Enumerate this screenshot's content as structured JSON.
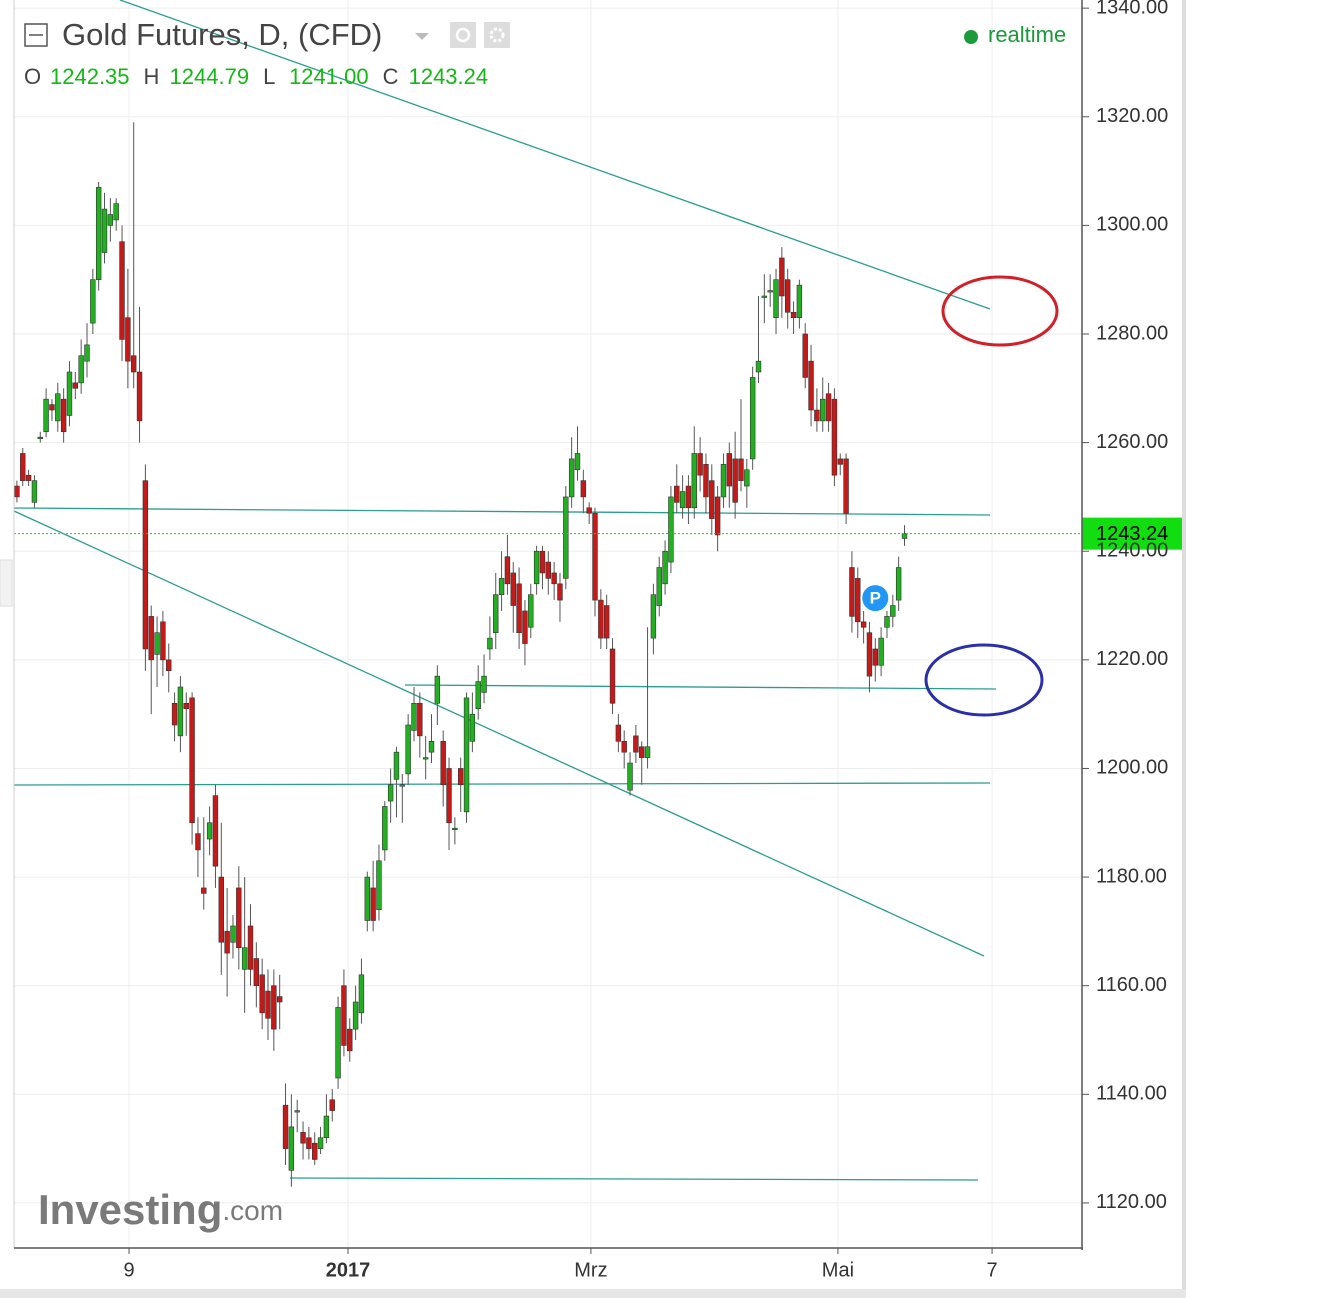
{
  "chart_data": {
    "type": "candlestick",
    "title": "Gold Futures, D, (CFD)",
    "status": "realtime",
    "brand": "Investing",
    "brand_suffix": ".com",
    "marker": "P",
    "ohlc_labels": {
      "names": [
        "O",
        "H",
        "L",
        "C"
      ],
      "value_labels": [
        "1242.35",
        "1244.79",
        "1241.00",
        "1243.24"
      ]
    },
    "up_color": "#22b022",
    "down_color": "#c41a1a",
    "grid": true,
    "xlim": [
      -0.5,
      182.4
    ],
    "xticks": [
      {
        "value": 19.2,
        "label": "9"
      },
      {
        "value": 56.7,
        "label": "2017"
      },
      {
        "value": 98.3,
        "label": "Mrz"
      },
      {
        "value": 140.6,
        "label": "Mai"
      },
      {
        "value": 167,
        "label": "7"
      }
    ],
    "ylim": [
      1111.7,
      1341.5
    ],
    "yticks": [
      {
        "value": 1120,
        "label": "1120.00"
      },
      {
        "value": 1140,
        "label": "1140.00"
      },
      {
        "value": 1160,
        "label": "1160.00"
      },
      {
        "value": 1180,
        "label": "1180.00"
      },
      {
        "value": 1200,
        "label": "1200.00"
      },
      {
        "value": 1220,
        "label": "1220.00"
      },
      {
        "value": 1240,
        "label": "1240.00"
      },
      {
        "value": 1260,
        "label": "1260.00"
      },
      {
        "value": 1280,
        "label": "1280.00"
      },
      {
        "value": 1300,
        "label": "1300.00"
      },
      {
        "value": 1320,
        "label": "1320.00"
      },
      {
        "value": 1340,
        "label": "1340.00"
      }
    ],
    "open": [
      1252,
      1258,
      1254,
      1249,
      1261,
      1262,
      1267,
      1264,
      1268,
      1265,
      1271,
      1271,
      1275,
      1282,
      1290,
      1295,
      1300,
      1301,
      1297,
      1283,
      1276,
      1273,
      1253,
      1228,
      1221,
      1227,
      1220,
      1212,
      1206,
      1212,
      1213,
      1188,
      1178,
      1187,
      1195,
      1180,
      1170,
      1168,
      1178,
      1163,
      1171,
      1165,
      1162,
      1159,
      1160,
      1158,
      1138,
      1126,
      1137,
      1133,
      1132,
      1131,
      1130,
      1132,
      1139,
      1143,
      1160,
      1152,
      1152,
      1155,
      1172,
      1178,
      1174,
      1185,
      1194,
      1198,
      1197,
      1199,
      1207,
      1212,
      1202,
      1203,
      1212,
      1205,
      1200,
      1189,
      1200,
      1192,
      1205,
      1211,
      1214,
      1222,
      1225,
      1232,
      1239,
      1236,
      1234,
      1229,
      1226,
      1234,
      1240,
      1238,
      1236,
      1234,
      1235,
      1250,
      1255,
      1253,
      1248,
      1247,
      1231,
      1230,
      1222,
      1208,
      1205,
      1196,
      1206,
      1204,
      1202,
      1224,
      1230,
      1234,
      1238,
      1252,
      1248,
      1252,
      1248,
      1258,
      1256,
      1253,
      1250,
      1250,
      1258,
      1257,
      1257,
      1252,
      1257,
      1273,
      1287,
      1288,
      1283,
      1294,
      1290,
      1284,
      1283,
      1280,
      1275,
      1266,
      1264,
      1269,
      1268,
      1257,
      1257,
      1237,
      1235,
      1227,
      1225,
      1222,
      1219,
      1226,
      1228,
      1231,
      1242.35
    ],
    "high": [
      1253,
      1259,
      1255,
      1254,
      1262,
      1270,
      1268,
      1271,
      1270,
      1275,
      1273,
      1279,
      1282,
      1292,
      1308,
      1306,
      1305,
      1305,
      1300,
      1292,
      1319,
      1285,
      1256,
      1230,
      1228,
      1229,
      1223,
      1214,
      1217,
      1214,
      1214,
      1191,
      1191,
      1193,
      1197,
      1190,
      1178,
      1173,
      1182,
      1180,
      1175,
      1168,
      1165,
      1163,
      1163,
      1162,
      1142,
      1140,
      1139,
      1135,
      1134,
      1133,
      1134,
      1140,
      1141,
      1158,
      1163,
      1154,
      1160,
      1165,
      1181,
      1183,
      1186,
      1194,
      1200,
      1204,
      1199,
      1210,
      1215,
      1214,
      1206,
      1210,
      1219,
      1207,
      1202,
      1191,
      1202,
      1214,
      1214,
      1219,
      1221,
      1228,
      1236,
      1240,
      1243,
      1238,
      1237,
      1231,
      1234,
      1241,
      1241,
      1240,
      1238,
      1236,
      1252,
      1261,
      1263,
      1255,
      1249,
      1248,
      1233,
      1232,
      1224,
      1210,
      1207,
      1203,
      1208,
      1205,
      1226,
      1234,
      1239,
      1242,
      1252,
      1256,
      1254,
      1254,
      1263,
      1261,
      1258,
      1256,
      1252,
      1258,
      1260,
      1262,
      1268,
      1257,
      1274,
      1287,
      1291,
      1291,
      1292,
      1296,
      1292,
      1286,
      1290,
      1282,
      1278,
      1270,
      1272,
      1271,
      1270,
      1258,
      1258,
      1240,
      1237,
      1229,
      1227,
      1224,
      1226,
      1229,
      1232,
      1239,
      1244.79
    ],
    "low": [
      1249,
      1252,
      1252,
      1248,
      1260,
      1261,
      1264,
      1262,
      1260,
      1263,
      1268,
      1269,
      1272,
      1280,
      1288,
      1293,
      1297,
      1299,
      1275,
      1270,
      1270,
      1260,
      1218,
      1210,
      1215,
      1217,
      1214,
      1205,
      1203,
      1206,
      1186,
      1180,
      1174,
      1184,
      1178,
      1162,
      1158,
      1165,
      1163,
      1155,
      1160,
      1156,
      1152,
      1150,
      1148,
      1152,
      1127,
      1123,
      1133,
      1128,
      1128,
      1127,
      1129,
      1131,
      1135,
      1141,
      1147,
      1146,
      1150,
      1153,
      1170,
      1170,
      1172,
      1183,
      1190,
      1191,
      1190,
      1197,
      1205,
      1202,
      1198,
      1201,
      1208,
      1193,
      1185,
      1186,
      1192,
      1190,
      1203,
      1209,
      1212,
      1220,
      1222,
      1229,
      1232,
      1225,
      1222,
      1219,
      1224,
      1232,
      1233,
      1232,
      1231,
      1227,
      1233,
      1248,
      1253,
      1247,
      1245,
      1228,
      1222,
      1222,
      1210,
      1203,
      1200,
      1195,
      1201,
      1197,
      1200,
      1221,
      1228,
      1232,
      1236,
      1247,
      1246,
      1245,
      1246,
      1251,
      1247,
      1243,
      1240,
      1248,
      1248,
      1246,
      1251,
      1248,
      1255,
      1271,
      1282,
      1285,
      1280,
      1283,
      1281,
      1280,
      1281,
      1270,
      1263,
      1262,
      1262,
      1262,
      1252,
      1254,
      1245,
      1225,
      1224,
      1223,
      1214,
      1216,
      1217,
      1224,
      1226,
      1229,
      1241
    ],
    "close": [
      1250,
      1253,
      1253,
      1253,
      1261,
      1268,
      1266,
      1269,
      1262,
      1273,
      1270,
      1276,
      1278,
      1290,
      1307,
      1303,
      1302,
      1304,
      1279,
      1275,
      1273,
      1264,
      1222,
      1220,
      1225,
      1220,
      1218,
      1208,
      1215,
      1211,
      1190,
      1185,
      1177,
      1190,
      1182,
      1168,
      1166,
      1171,
      1167,
      1167,
      1163,
      1160,
      1155,
      1154,
      1152,
      1157,
      1130,
      1134,
      1137,
      1131,
      1130,
      1128,
      1132,
      1136,
      1137,
      1156,
      1149,
      1148,
      1157,
      1162,
      1180,
      1172,
      1183,
      1193,
      1197,
      1203,
      1197,
      1208,
      1212,
      1206,
      1202,
      1205,
      1217,
      1197,
      1190,
      1189,
      1197,
      1213,
      1210,
      1216,
      1217,
      1224,
      1232,
      1235,
      1234,
      1230,
      1225,
      1223,
      1232,
      1240,
      1236,
      1235,
      1234,
      1231,
      1250,
      1257,
      1258,
      1250,
      1247,
      1231,
      1224,
      1224,
      1212,
      1205,
      1203,
      1201,
      1203,
      1202,
      1204,
      1232,
      1237,
      1240,
      1250,
      1249,
      1251,
      1248,
      1258,
      1254,
      1250,
      1246,
      1243,
      1256,
      1252,
      1249,
      1253,
      1255,
      1272,
      1275,
      1287,
      1288,
      1290,
      1287,
      1284,
      1283,
      1289,
      1272,
      1266,
      1264,
      1268,
      1264,
      1254,
      1256,
      1247,
      1228,
      1227,
      1226,
      1217,
      1219,
      1224,
      1228,
      1230,
      1237,
      1243.24
    ]
  }
}
